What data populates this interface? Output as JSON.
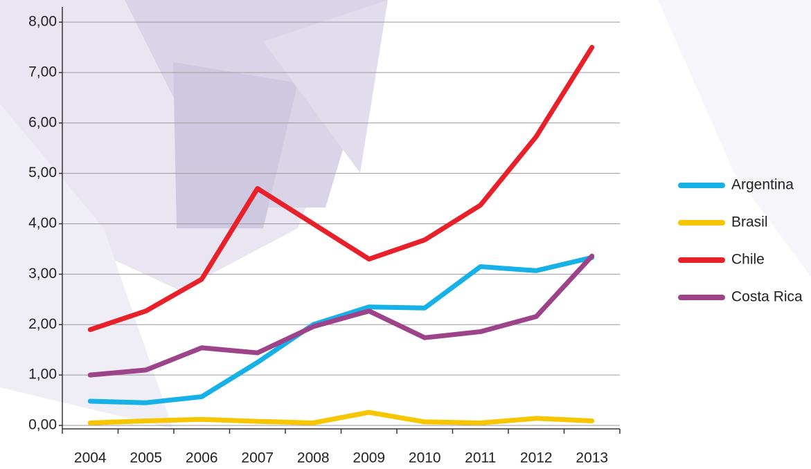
{
  "chart_data": {
    "type": "line",
    "categories": [
      "2004",
      "2005",
      "2006",
      "2007",
      "2008",
      "2009",
      "2010",
      "2011",
      "2012",
      "2013"
    ],
    "series": [
      {
        "name": "Argentina",
        "color": "#16b1e6",
        "values": [
          0.48,
          0.45,
          0.57,
          1.25,
          2.0,
          2.35,
          2.33,
          3.15,
          3.07,
          3.33
        ]
      },
      {
        "name": "Brasil",
        "color": "#f7c600",
        "values": [
          0.05,
          0.09,
          0.12,
          0.08,
          0.05,
          0.26,
          0.07,
          0.05,
          0.14,
          0.09
        ]
      },
      {
        "name": "Chile",
        "color": "#e8202a",
        "values": [
          1.9,
          2.27,
          2.9,
          4.7,
          4.0,
          3.3,
          3.68,
          4.37,
          5.73,
          7.5
        ]
      },
      {
        "name": "Costa Rica",
        "color": "#9c4389",
        "values": [
          1.0,
          1.1,
          1.54,
          1.44,
          1.96,
          2.27,
          1.74,
          1.86,
          2.16,
          3.36
        ]
      }
    ],
    "ylim": [
      0,
      8
    ],
    "yticks": [
      {
        "value": 0,
        "label": "0,00"
      },
      {
        "value": 1,
        "label": "1,00"
      },
      {
        "value": 2,
        "label": "2,00"
      },
      {
        "value": 3,
        "label": "3,00"
      },
      {
        "value": 4,
        "label": "4,00"
      },
      {
        "value": 5,
        "label": "5,00"
      },
      {
        "value": 6,
        "label": "6,00"
      },
      {
        "value": 7,
        "label": "7,00"
      },
      {
        "value": 8,
        "label": "8,00"
      }
    ],
    "grid": true,
    "legend": "right"
  }
}
